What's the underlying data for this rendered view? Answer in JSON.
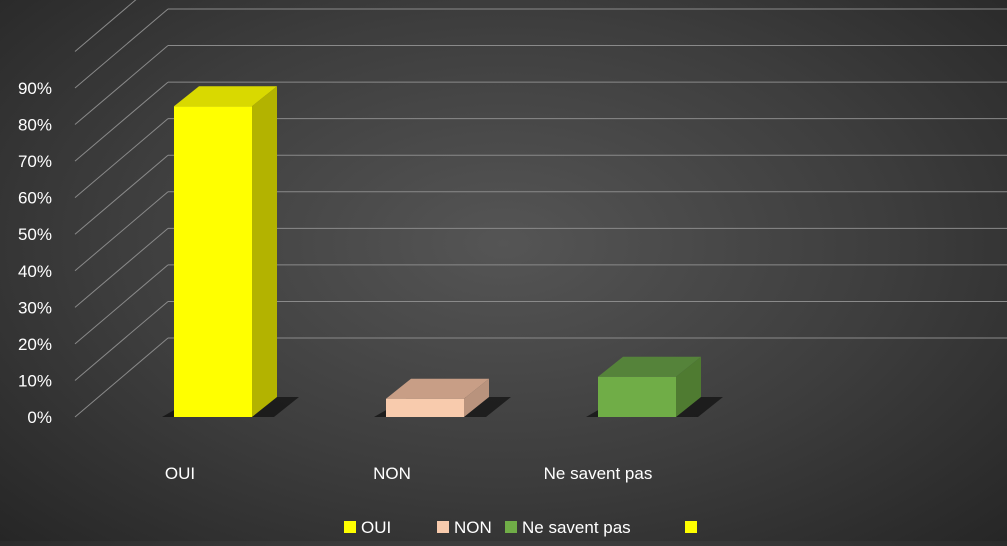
{
  "chart_data": {
    "type": "bar",
    "style": "3d-column",
    "categories": [
      "OUI",
      "NON",
      "Ne savent pas"
    ],
    "values": [
      85,
      5,
      11
    ],
    "unit": "%",
    "ylim": [
      0,
      90
    ],
    "yticks": [
      "0%",
      "10%",
      "20%",
      "30%",
      "40%",
      "50%",
      "60%",
      "70%",
      "80%",
      "90%"
    ],
    "grid": true,
    "legend_position": "bottom",
    "legend": [
      {
        "label": "OUI",
        "color": "#ffff00"
      },
      {
        "label": "NON",
        "color": "#f8cbad"
      },
      {
        "label": "Ne savent pas",
        "color": "#70ad47"
      },
      {
        "label": "",
        "color": "#ffff00"
      }
    ],
    "colors": {
      "OUI": {
        "front": "#ffff00",
        "side": "#b3b300",
        "top": "#d9d900"
      },
      "NON": {
        "front": "#f8cbad",
        "side": "#b9937d",
        "top": "#c89e86"
      },
      "Ne savent pas": {
        "front": "#70ad47",
        "side": "#4f7b31",
        "top": "#55833a"
      }
    },
    "background": "#404040",
    "gridline_color": "#8a8a8a",
    "text_color": "#ffffff"
  }
}
